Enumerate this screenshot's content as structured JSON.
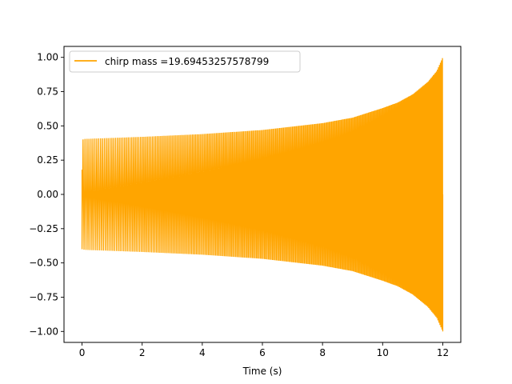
{
  "chart_data": {
    "type": "line",
    "title": "",
    "xlabel": "Time (s)",
    "ylabel": "",
    "xlim": [
      -0.6,
      12.6
    ],
    "ylim": [
      -1.08,
      1.08
    ],
    "xticks": [
      0,
      2,
      4,
      6,
      8,
      10,
      12
    ],
    "xtick_labels": [
      "0",
      "2",
      "4",
      "6",
      "8",
      "10",
      "12"
    ],
    "yticks": [
      -1.0,
      -0.75,
      -0.5,
      -0.25,
      0.0,
      0.25,
      0.5,
      0.75,
      1.0
    ],
    "ytick_labels": [
      "−1.00",
      "−0.75",
      "−0.50",
      "−0.25",
      "0.00",
      "0.25",
      "0.50",
      "0.75",
      "1.00"
    ],
    "grid": false,
    "legend_position": "top-left",
    "series": [
      {
        "name": "chirp mass =19.69453257578799",
        "color": "#FFA500",
        "kind": "chirp",
        "t_start": 0,
        "t_end": 12,
        "start_value": 0.18,
        "envelope": {
          "t": [
            0,
            0.1,
            2,
            4,
            6,
            8,
            9,
            10,
            10.5,
            11,
            11.5,
            11.8,
            12
          ],
          "amplitude": [
            0.4,
            0.405,
            0.42,
            0.44,
            0.47,
            0.52,
            0.56,
            0.63,
            0.67,
            0.73,
            0.82,
            0.9,
            1.0
          ]
        },
        "cycles_per_second": {
          "t": [
            0,
            12
          ],
          "frequency": [
            15,
            30
          ]
        }
      }
    ]
  }
}
